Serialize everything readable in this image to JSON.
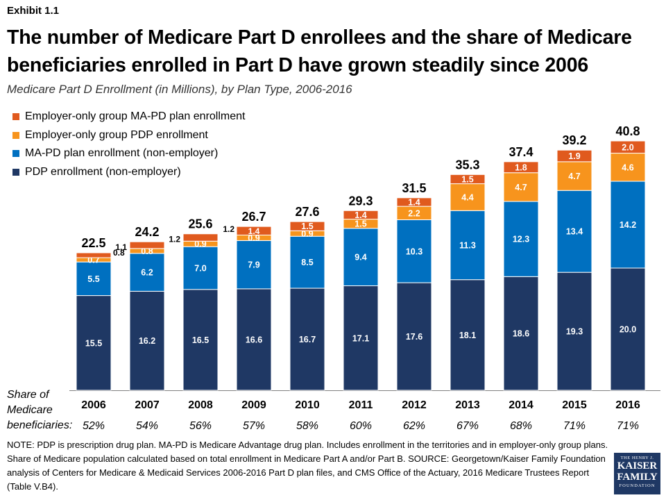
{
  "exhibit": "Exhibit 1.1",
  "title": "The number of Medicare Part D enrollees and the share of Medicare beneficiaries enrolled in Part D have grown steadily since 2006",
  "subtitle": "Medicare Part D Enrollment (in Millions), by Plan Type, 2006-2016",
  "share_label": "Share of Medicare beneficiaries:",
  "note": "NOTE: PDP is prescription drug plan. MA-PD is Medicare Advantage drug plan. Includes enrollment in the territories and in employer-only group plans. Share of Medicare population calculated based on total enrollment in Medicare Part A and/or Part B. SOURCE: Georgetown/Kaiser Family Foundation analysis of Centers for Medicare & Medicaid Services 2006-2016 Part D plan files, and CMS Office of the Actuary, 2016 Medicare Trustees Report (Table V.B4).",
  "logo": {
    "line1": "THE HENRY J.",
    "line2a": "KAISER",
    "line2b": "FAMILY",
    "line3": "FOUNDATION"
  },
  "chart_data": {
    "type": "bar",
    "stacked": true,
    "title": "Medicare Part D Enrollment (in Millions), by Plan Type, 2006-2016",
    "categories": [
      "2006",
      "2007",
      "2008",
      "2009",
      "2010",
      "2011",
      "2012",
      "2013",
      "2014",
      "2015",
      "2016"
    ],
    "series": [
      {
        "name": "PDP enrollment (non-employer)",
        "color": "#1f3864",
        "values": [
          15.5,
          16.2,
          16.5,
          16.6,
          16.7,
          17.1,
          17.6,
          18.1,
          18.6,
          19.3,
          20.0
        ]
      },
      {
        "name": "MA-PD plan enrollment (non-employer)",
        "color": "#0070c0",
        "values": [
          5.5,
          6.2,
          7.0,
          7.9,
          8.5,
          9.4,
          10.3,
          11.3,
          12.3,
          13.4,
          14.2
        ]
      },
      {
        "name": "Employer-only group PDP enrollment",
        "color": "#f7941d",
        "values": [
          0.7,
          0.8,
          0.9,
          0.9,
          0.9,
          1.5,
          2.2,
          4.4,
          4.7,
          4.7,
          4.6
        ]
      },
      {
        "name": "Employer-only group MA-PD plan enrollment",
        "color": "#e05a1e",
        "values": [
          0.8,
          1.1,
          1.2,
          1.4,
          1.5,
          1.4,
          1.4,
          1.5,
          1.8,
          1.9,
          2.0
        ]
      }
    ],
    "totals": [
      "22.5",
      "24.2",
      "25.6",
      "26.7",
      "27.6",
      "29.3",
      "31.5",
      "35.3",
      "37.4",
      "39.2",
      "40.8"
    ],
    "value_labels": [
      [
        "15.5",
        "16.2",
        "16.5",
        "16.6",
        "16.7",
        "17.1",
        "17.6",
        "18.1",
        "18.6",
        "19.3",
        "20.0"
      ],
      [
        "5.5",
        "6.2",
        "7.0",
        "7.9",
        "8.5",
        "9.4",
        "10.3",
        "11.3",
        "12.3",
        "13.4",
        "14.2"
      ],
      [
        "0.7",
        "0.8",
        "0.9",
        "0.9",
        "0.9",
        "1.5",
        "2.2",
        "4.4",
        "4.7",
        "4.7",
        "4.6"
      ],
      [
        "0.8",
        "1.1",
        "1.2",
        "1.4",
        "1.5",
        "1.4",
        "1.4",
        "1.5",
        "1.8",
        "1.9",
        "2.0"
      ]
    ],
    "share": [
      "52%",
      "54%",
      "56%",
      "57%",
      "58%",
      "60%",
      "62%",
      "67%",
      "68%",
      "71%",
      "71%"
    ],
    "legend_order": [
      3,
      2,
      1,
      0
    ],
    "legend_position": "top-left",
    "ylim": [
      0,
      44
    ],
    "grid": false
  }
}
